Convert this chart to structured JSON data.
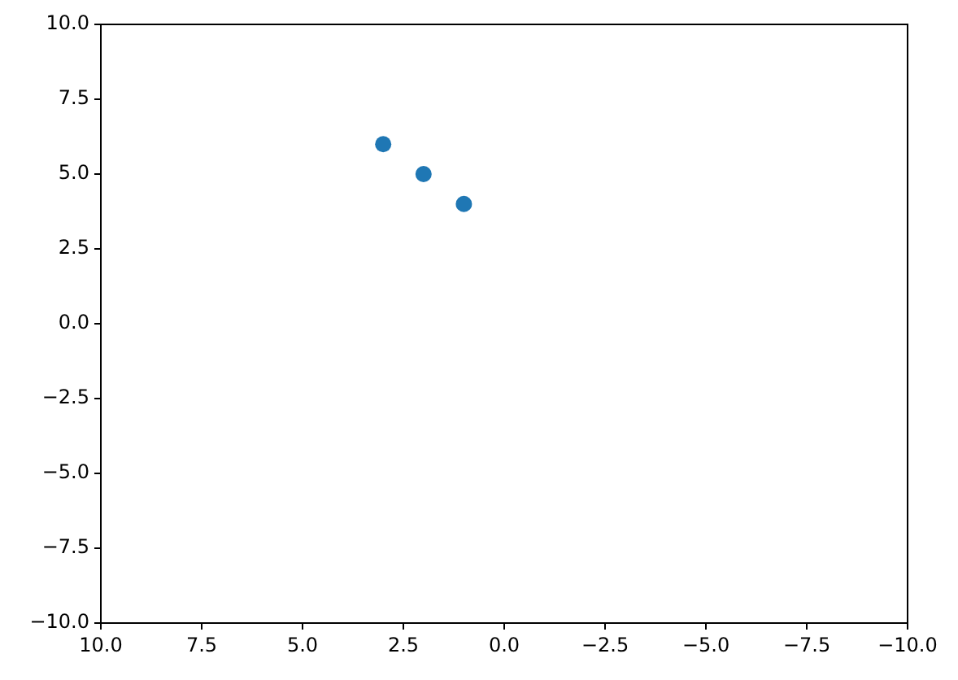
{
  "chart_data": {
    "type": "scatter",
    "x": [
      3,
      2,
      1
    ],
    "series": [
      {
        "color": "#1f77b4",
        "values": [
          6,
          5,
          4
        ]
      }
    ],
    "xlim": [
      10,
      -10
    ],
    "ylim": [
      -10,
      10
    ],
    "xticks": [
      {
        "value": 10,
        "label": "10.0"
      },
      {
        "value": 7.5,
        "label": "7.5"
      },
      {
        "value": 5,
        "label": "5.0"
      },
      {
        "value": 2.5,
        "label": "2.5"
      },
      {
        "value": 0,
        "label": "0.0"
      },
      {
        "value": -2.5,
        "label": "−2.5"
      },
      {
        "value": -5,
        "label": "−5.0"
      },
      {
        "value": -7.5,
        "label": "−7.5"
      },
      {
        "value": -10,
        "label": "−10.0"
      }
    ],
    "yticks": [
      {
        "value": -10,
        "label": "−10.0"
      },
      {
        "value": -7.5,
        "label": "−7.5"
      },
      {
        "value": -5,
        "label": "−5.0"
      },
      {
        "value": -2.5,
        "label": "−2.5"
      },
      {
        "value": 0,
        "label": "0.0"
      },
      {
        "value": 2.5,
        "label": "2.5"
      },
      {
        "value": 5,
        "label": "5.0"
      },
      {
        "value": 7.5,
        "label": "7.5"
      },
      {
        "value": 10,
        "label": "10.0"
      }
    ],
    "marker": "circle",
    "grid": false,
    "legend": false
  }
}
